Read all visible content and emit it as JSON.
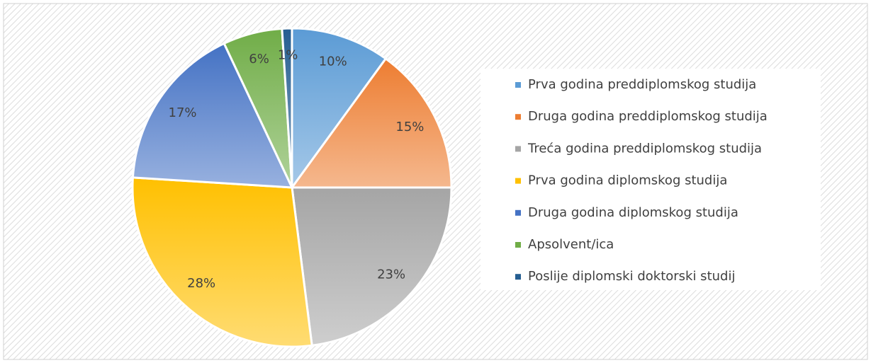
{
  "chart_data": {
    "type": "pie",
    "categories": [
      "Prva godina preddiplomskog studija",
      "Druga godina preddiplomskog studija",
      "Treća godina preddiplomskog studija",
      "Prva godina diplomskog studija",
      "Druga godina diplomskog studija",
      "Apsolvent/ica",
      "Poslije diplomski doktorski studij"
    ],
    "values": [
      10,
      15,
      23,
      28,
      17,
      6,
      1
    ],
    "value_labels": [
      "10%",
      "15%",
      "23%",
      "28%",
      "17%",
      "6%",
      "1%"
    ],
    "colors": [
      "#5b9bd5",
      "#ed7d31",
      "#a5a5a5",
      "#ffc000",
      "#4472c4",
      "#70ad47",
      "#255e91"
    ],
    "legend": "right"
  }
}
